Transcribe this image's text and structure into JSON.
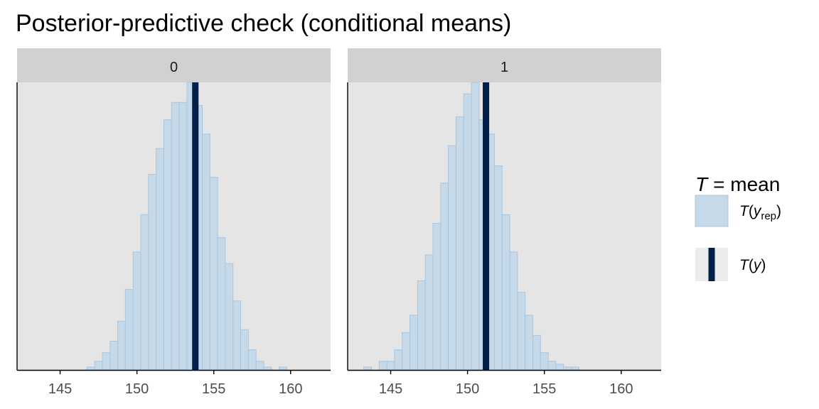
{
  "chart_data": {
    "type": "bar",
    "title": "Posterior-predictive check (conditional means)",
    "xlim": [
      142.2,
      162.6
    ],
    "x_ticks": [
      "145",
      "150",
      "155",
      "160"
    ],
    "bin_width": 0.5,
    "panels": [
      {
        "label": "0",
        "observed_mean": 153.8,
        "bins_start": 146.75,
        "counts": [
          1,
          3,
          6,
          10,
          17,
          28,
          41,
          54,
          68,
          77,
          87,
          93,
          93,
          100,
          92,
          82,
          67,
          46,
          37,
          24,
          14,
          7,
          3,
          1,
          0,
          1
        ]
      },
      {
        "label": "1",
        "observed_mean": 151.2,
        "bins_start": 143.25,
        "counts": [
          1,
          0,
          3,
          3,
          7,
          13,
          19,
          31,
          40,
          51,
          65,
          78,
          88,
          96,
          100,
          87,
          82,
          71,
          54,
          41,
          27,
          19,
          12,
          6,
          3,
          2,
          1,
          1
        ]
      }
    ],
    "legend": {
      "title_T": "T",
      "title_rest": "= mean",
      "items": [
        {
          "label_T": "T",
          "label_y": "y",
          "label_sub": "rep"
        },
        {
          "label_T": "T",
          "label_y": "y"
        }
      ]
    },
    "colors": {
      "bar_fill": "#c6d9e8",
      "bar_stroke": "#a9c6df",
      "observed_line": "#011f4b",
      "panel_bg": "#e5e5e5",
      "strip_bg": "#d1d1d1",
      "axis": "#000000"
    }
  }
}
